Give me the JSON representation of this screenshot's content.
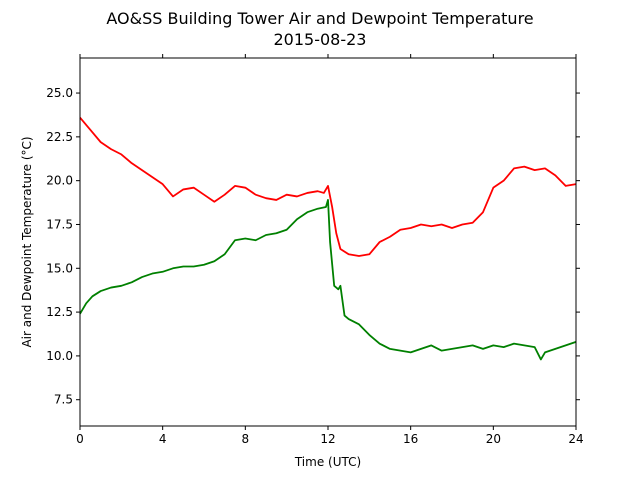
{
  "chart_data": {
    "type": "line",
    "title": "AO&SS Building Tower Air and Dewpoint Temperature",
    "subtitle": "2015-08-23",
    "xlabel": "Time (UTC)",
    "ylabel": "Air and Dewpoint Temperature (°C)",
    "xlim": [
      0,
      24
    ],
    "ylim": [
      6.0,
      27.0
    ],
    "xticks": [
      0,
      4,
      8,
      12,
      16,
      20,
      24
    ],
    "xtick_labels": [
      "0",
      "4",
      "8",
      "12",
      "16",
      "20",
      "24"
    ],
    "yticks": [
      7.5,
      10.0,
      12.5,
      15.0,
      17.5,
      20.0,
      22.5,
      25.0
    ],
    "ytick_labels": [
      "7.5",
      "10.0",
      "12.5",
      "15.0",
      "17.5",
      "20.0",
      "22.5",
      "25.0"
    ],
    "grid": false,
    "series": [
      {
        "color": "#ff0000",
        "x": [
          0,
          0.5,
          1,
          1.5,
          2,
          2.5,
          3,
          3.5,
          4,
          4.5,
          5,
          5.5,
          6,
          6.5,
          7,
          7.5,
          8,
          8.5,
          9,
          9.5,
          10,
          10.5,
          11,
          11.5,
          11.8,
          12.0,
          12.2,
          12.4,
          12.6,
          13,
          13.5,
          14,
          14.5,
          15,
          15.5,
          16,
          16.5,
          17,
          17.5,
          18,
          18.5,
          19,
          19.5,
          20,
          20.5,
          21,
          21.5,
          22,
          22.5,
          23,
          23.5,
          24
        ],
        "y": [
          23.6,
          22.9,
          22.2,
          21.8,
          21.5,
          21.0,
          20.6,
          20.2,
          19.8,
          19.1,
          19.5,
          19.6,
          19.2,
          18.8,
          19.2,
          19.7,
          19.6,
          19.2,
          19.0,
          18.9,
          19.2,
          19.1,
          19.3,
          19.4,
          19.3,
          19.7,
          18.5,
          17.0,
          16.1,
          15.8,
          15.7,
          15.8,
          16.5,
          16.8,
          17.2,
          17.3,
          17.5,
          17.4,
          17.5,
          17.3,
          17.5,
          17.6,
          18.2,
          19.6,
          20.0,
          20.7,
          20.8,
          20.6,
          20.7,
          20.3,
          19.7,
          19.8
        ]
      },
      {
        "color": "#008000",
        "x": [
          0,
          0.3,
          0.6,
          1,
          1.5,
          2,
          2.5,
          3,
          3.5,
          4,
          4.5,
          5,
          5.5,
          6,
          6.5,
          7,
          7.5,
          8,
          8.5,
          9,
          9.5,
          10,
          10.5,
          11,
          11.5,
          11.9,
          12.0,
          12.1,
          12.3,
          12.5,
          12.6,
          12.8,
          13,
          13.5,
          14,
          14.5,
          15,
          15.5,
          16,
          16.5,
          17,
          17.5,
          18,
          18.5,
          19,
          19.5,
          20,
          20.5,
          21,
          21.5,
          22,
          22.3,
          22.5,
          23,
          23.5,
          24
        ],
        "y": [
          12.4,
          13.0,
          13.4,
          13.7,
          13.9,
          14.0,
          14.2,
          14.5,
          14.7,
          14.8,
          15.0,
          15.1,
          15.1,
          15.2,
          15.4,
          15.8,
          16.6,
          16.7,
          16.6,
          16.9,
          17.0,
          17.2,
          17.8,
          18.2,
          18.4,
          18.5,
          18.9,
          16.5,
          14.0,
          13.8,
          14.0,
          12.3,
          12.1,
          11.8,
          11.2,
          10.7,
          10.4,
          10.3,
          10.2,
          10.4,
          10.6,
          10.3,
          10.4,
          10.5,
          10.6,
          10.4,
          10.6,
          10.5,
          10.7,
          10.6,
          10.5,
          9.8,
          10.2,
          10.4,
          10.6,
          10.8
        ]
      }
    ]
  }
}
